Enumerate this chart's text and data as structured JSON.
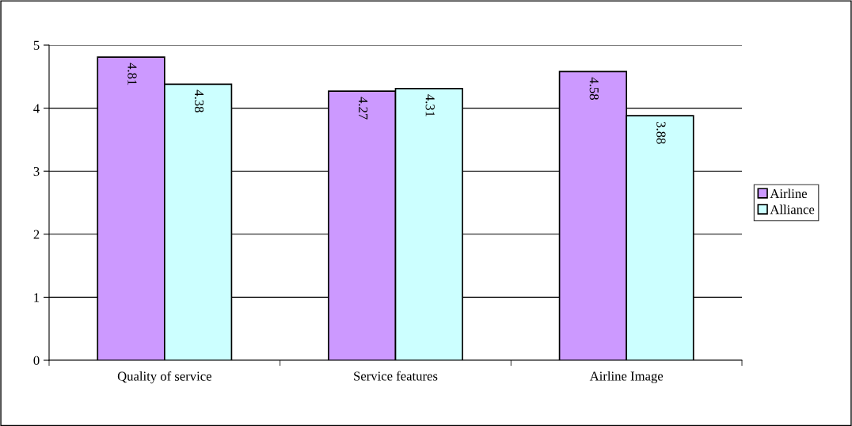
{
  "chart_data": {
    "type": "bar",
    "categories": [
      "Quality of service",
      "Service features",
      "Airline Image"
    ],
    "series": [
      {
        "name": "Airline",
        "color": "#cc99ff",
        "values": [
          4.81,
          4.27,
          4.58
        ]
      },
      {
        "name": "Alliance",
        "color": "#ccffff",
        "values": [
          4.38,
          4.31,
          3.88
        ]
      }
    ],
    "ylim": [
      0,
      5
    ],
    "yticks": [
      0,
      1,
      2,
      3,
      4,
      5
    ],
    "grid": "y",
    "legend": "right",
    "data_labels": true
  }
}
